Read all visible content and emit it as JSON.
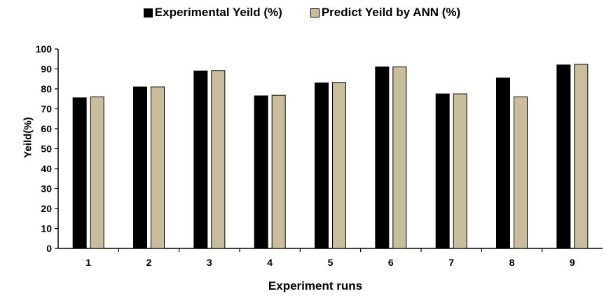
{
  "chart_data": {
    "type": "bar",
    "categories": [
      "1",
      "2",
      "3",
      "4",
      "5",
      "6",
      "7",
      "8",
      "9"
    ],
    "series": [
      {
        "name": "Experimental Yeild (%)",
        "color": "#000000",
        "values": [
          75.5,
          81,
          89,
          76.5,
          83,
          91,
          77.5,
          85.5,
          92
        ]
      },
      {
        "name": "Predict Yeild by ANN (%)",
        "color": "#c9bd9b",
        "values": [
          76,
          81,
          89.2,
          76.8,
          83.2,
          91,
          77.5,
          76,
          92.3
        ]
      }
    ],
    "xlabel": "Experiment runs",
    "ylabel": "Yeild(%)",
    "ylim": [
      0,
      100
    ],
    "yticks": [
      "0",
      "10",
      "20",
      "30",
      "40",
      "50",
      "60",
      "70",
      "80",
      "90",
      "100"
    ],
    "grid": false,
    "legend_position": "top-center"
  }
}
